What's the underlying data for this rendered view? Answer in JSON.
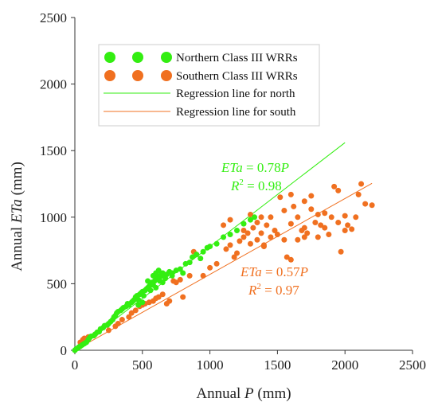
{
  "chart_data": {
    "type": "scatter",
    "xlabel_prefix": "Annual ",
    "xlabel_var": "P",
    "xlabel_unit": " (mm)",
    "ylabel_prefix": "Annual ",
    "ylabel_var": "ETa",
    "ylabel_unit": " (mm)",
    "xlim": [
      0,
      2500
    ],
    "ylim": [
      0,
      2500
    ],
    "xticks": [
      0,
      500,
      1000,
      1500,
      2000,
      2500
    ],
    "yticks": [
      0,
      500,
      1000,
      1500,
      2000,
      2500
    ],
    "grid": false,
    "legend_placement": "top-left",
    "legend": [
      {
        "label": "Northern Class III WRRs",
        "kind": "marker",
        "color": "#33ee11"
      },
      {
        "label": "Southern Class III WRRs",
        "kind": "marker",
        "color": "#f07020"
      },
      {
        "label": "Regression line for north",
        "kind": "line",
        "color": "#33ee11"
      },
      {
        "label": "Regression line for south",
        "kind": "line",
        "color": "#f07020"
      }
    ],
    "series": [
      {
        "name": "Northern Class III WRRs",
        "color": "#33ee11",
        "points": [
          [
            0,
            0
          ],
          [
            10,
            10
          ],
          [
            20,
            15
          ],
          [
            30,
            25
          ],
          [
            40,
            30
          ],
          [
            55,
            40
          ],
          [
            70,
            50
          ],
          [
            85,
            60
          ],
          [
            100,
            80
          ],
          [
            110,
            95
          ],
          [
            120,
            105
          ],
          [
            140,
            110
          ],
          [
            150,
            120
          ],
          [
            165,
            135
          ],
          [
            180,
            140
          ],
          [
            190,
            160
          ],
          [
            210,
            170
          ],
          [
            220,
            185
          ],
          [
            240,
            190
          ],
          [
            250,
            200
          ],
          [
            265,
            215
          ],
          [
            280,
            230
          ],
          [
            290,
            250
          ],
          [
            300,
            260
          ],
          [
            310,
            280
          ],
          [
            320,
            290
          ],
          [
            340,
            300
          ],
          [
            350,
            310
          ],
          [
            360,
            320
          ],
          [
            380,
            330
          ],
          [
            390,
            350
          ],
          [
            400,
            340
          ],
          [
            420,
            360
          ],
          [
            430,
            370
          ],
          [
            440,
            380
          ],
          [
            450,
            400
          ],
          [
            460,
            410
          ],
          [
            470,
            380
          ],
          [
            480,
            420
          ],
          [
            490,
            430
          ],
          [
            500,
            440
          ],
          [
            510,
            410
          ],
          [
            520,
            450
          ],
          [
            530,
            460
          ],
          [
            540,
            470
          ],
          [
            550,
            480
          ],
          [
            560,
            500
          ],
          [
            570,
            510
          ],
          [
            580,
            490
          ],
          [
            590,
            520
          ],
          [
            600,
            530
          ],
          [
            610,
            560
          ],
          [
            620,
            540
          ],
          [
            630,
            550
          ],
          [
            640,
            570
          ],
          [
            650,
            580
          ],
          [
            660,
            560
          ],
          [
            680,
            570
          ],
          [
            700,
            590
          ],
          [
            720,
            580
          ],
          [
            750,
            600
          ],
          [
            780,
            610
          ],
          [
            800,
            580
          ],
          [
            820,
            650
          ],
          [
            850,
            660
          ],
          [
            870,
            700
          ],
          [
            900,
            720
          ],
          [
            930,
            690
          ],
          [
            950,
            740
          ],
          [
            980,
            770
          ],
          [
            1000,
            780
          ],
          [
            1050,
            800
          ],
          [
            1100,
            850
          ],
          [
            1150,
            870
          ],
          [
            1200,
            900
          ],
          [
            1250,
            950
          ],
          [
            1300,
            980
          ],
          [
            1330,
            1000
          ],
          [
            560,
            450
          ],
          [
            580,
            560
          ],
          [
            600,
            580
          ],
          [
            630,
            520
          ],
          [
            670,
            540
          ],
          [
            720,
            560
          ],
          [
            620,
            600
          ],
          [
            650,
            510
          ],
          [
            540,
            520
          ],
          [
            500,
            360
          ],
          [
            470,
            340
          ],
          [
            600,
            470
          ]
        ]
      },
      {
        "name": "Southern Class III WRRs",
        "color": "#f07020",
        "points": [
          [
            40,
            60
          ],
          [
            50,
            50
          ],
          [
            60,
            80
          ],
          [
            70,
            90
          ],
          [
            90,
            70
          ],
          [
            100,
            100
          ],
          [
            150,
            120
          ],
          [
            250,
            150
          ],
          [
            300,
            180
          ],
          [
            320,
            200
          ],
          [
            350,
            230
          ],
          [
            400,
            250
          ],
          [
            420,
            280
          ],
          [
            450,
            300
          ],
          [
            480,
            330
          ],
          [
            500,
            340
          ],
          [
            520,
            350
          ],
          [
            550,
            360
          ],
          [
            580,
            370
          ],
          [
            600,
            390
          ],
          [
            620,
            400
          ],
          [
            650,
            420
          ],
          [
            680,
            350
          ],
          [
            700,
            370
          ],
          [
            730,
            520
          ],
          [
            750,
            510
          ],
          [
            780,
            530
          ],
          [
            800,
            400
          ],
          [
            850,
            560
          ],
          [
            880,
            740
          ],
          [
            900,
            720
          ],
          [
            950,
            560
          ],
          [
            1000,
            620
          ],
          [
            1050,
            650
          ],
          [
            1100,
            940
          ],
          [
            1120,
            760
          ],
          [
            1150,
            790
          ],
          [
            1180,
            700
          ],
          [
            1200,
            730
          ],
          [
            1220,
            820
          ],
          [
            1250,
            850
          ],
          [
            1280,
            880
          ],
          [
            1300,
            1020
          ],
          [
            1320,
            920
          ],
          [
            1350,
            830
          ],
          [
            1380,
            880
          ],
          [
            1400,
            790
          ],
          [
            1420,
            940
          ],
          [
            1450,
            1000
          ],
          [
            1480,
            900
          ],
          [
            1500,
            870
          ],
          [
            1520,
            1150
          ],
          [
            1550,
            1050
          ],
          [
            1570,
            700
          ],
          [
            1600,
            950
          ],
          [
            1620,
            1080
          ],
          [
            1650,
            830
          ],
          [
            1680,
            900
          ],
          [
            1700,
            1120
          ],
          [
            1720,
            880
          ],
          [
            1750,
            1160
          ],
          [
            1780,
            960
          ],
          [
            1800,
            1020
          ],
          [
            1820,
            940
          ],
          [
            1850,
            920
          ],
          [
            1880,
            870
          ],
          [
            1900,
            1000
          ],
          [
            1920,
            1230
          ],
          [
            1950,
            1200
          ],
          [
            1970,
            740
          ],
          [
            2000,
            900
          ],
          [
            2020,
            940
          ],
          [
            2050,
            910
          ],
          [
            2080,
            1000
          ],
          [
            2100,
            1170
          ],
          [
            2120,
            1250
          ],
          [
            2150,
            1100
          ],
          [
            2200,
            1090
          ],
          [
            1300,
            800
          ],
          [
            1400,
            780
          ],
          [
            1600,
            680
          ],
          [
            1700,
            850
          ],
          [
            1350,
            960
          ],
          [
            1450,
            850
          ],
          [
            1550,
            830
          ],
          [
            1650,
            1000
          ],
          [
            1750,
            1060
          ],
          [
            1850,
            1030
          ],
          [
            1950,
            960
          ],
          [
            1150,
            980
          ],
          [
            1250,
            900
          ],
          [
            1380,
            1000
          ],
          [
            1600,
            1170
          ],
          [
            1700,
            920
          ],
          [
            2000,
            1010
          ],
          [
            1800,
            850
          ]
        ]
      }
    ],
    "regression_lines": [
      {
        "name": "Regression line for north",
        "color": "#33ee11",
        "slope": 0.78,
        "x_range": [
          0,
          2000
        ]
      },
      {
        "name": "Regression line for south",
        "color": "#f07020",
        "slope": 0.57,
        "x_range": [
          0,
          2200
        ]
      }
    ],
    "annotations": [
      {
        "series": "north",
        "color": "#33ee11",
        "eq_var": "ETa",
        "eq_rest": " = 0.78",
        "eq_tail": "P",
        "r2_label": "R",
        "r2_sup": "2",
        "r2_value": " = 0.98"
      },
      {
        "series": "south",
        "color": "#f07020",
        "eq_var": "ETa",
        "eq_rest": " = 0.57",
        "eq_tail": "P",
        "r2_label": "R",
        "r2_sup": "2",
        "r2_value": " = 0.97"
      }
    ]
  }
}
